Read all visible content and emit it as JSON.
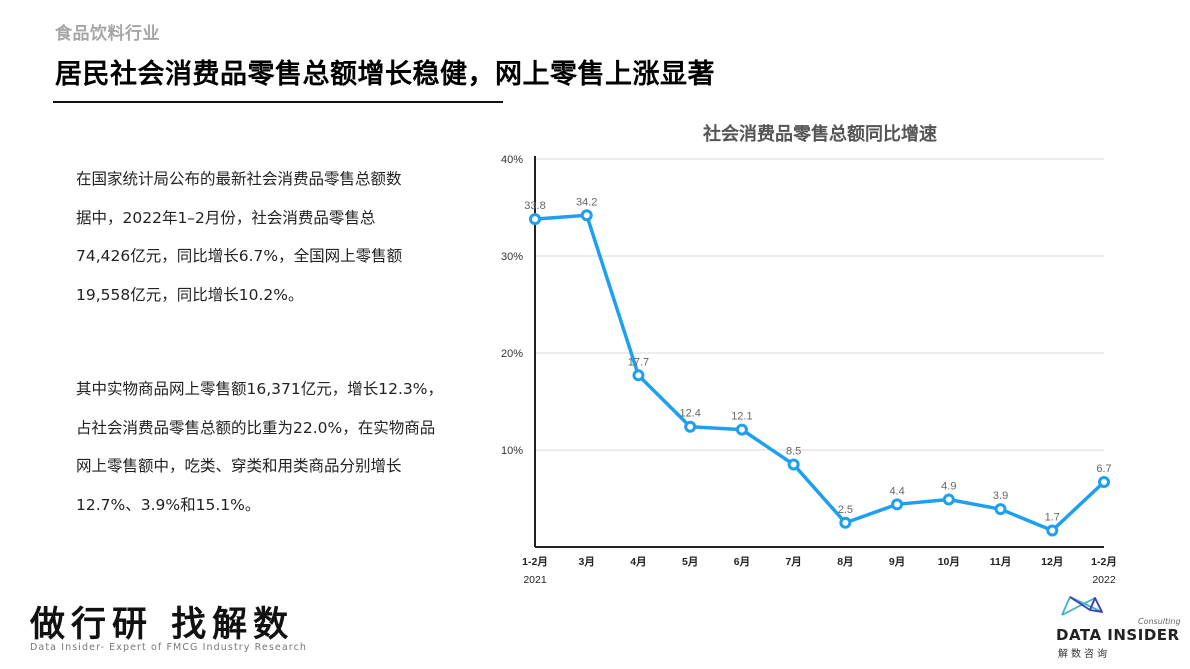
{
  "header": {
    "category": "食品饮料行业",
    "title": "居民社会消费品零售总额增长稳健，网上零售上涨显著"
  },
  "body": {
    "paragraphs": [
      [
        "在国家统计局公布的最新社会消费品零售总额数",
        "据中，2022年1–2月份，社会消费品零售总",
        "74,426亿元，同比增长6.7%，全国网上零售额",
        "19,558亿元，同比增长10.2%。"
      ],
      [
        "其中实物商品网上零售额16,371亿元，增长12.3%，",
        "占社会消费品零售总额的比重为22.0%，在实物商品",
        "网上零售额中，吃类、穿类和用类商品分别增长",
        "12.7%、3.9%和15.1%。"
      ]
    ]
  },
  "chart_data": {
    "type": "line",
    "title": "社会消费品零售总额同比增速",
    "xlabel": "",
    "ylabel": "",
    "ylim": [
      0,
      40
    ],
    "yticks": [
      "10%",
      "20%",
      "30%",
      "40%"
    ],
    "ytick_values": [
      10,
      20,
      30,
      40
    ],
    "categories": [
      "1-2月",
      "3月",
      "4月",
      "5月",
      "6月",
      "7月",
      "8月",
      "9月",
      "10月",
      "11月",
      "12月",
      "1-2月"
    ],
    "year_labels": [
      {
        "index": 0,
        "label": "2021"
      },
      {
        "index": 11,
        "label": "2022"
      }
    ],
    "series": [
      {
        "name": "社会消费品零售总额同比增速",
        "color": "#1ea0f0",
        "values": [
          33.8,
          34.2,
          17.7,
          12.4,
          12.1,
          8.5,
          2.5,
          4.4,
          4.9,
          3.9,
          1.7,
          6.7
        ]
      }
    ],
    "grid": true,
    "legend": "none"
  },
  "footer": {
    "slogan": "做行研 找解数",
    "tagline": "Data Insider- Expert of FMCG Industry Research",
    "logo_consulting": "Consulting",
    "logo_name": "DATA INSIDER",
    "logo_cn": "解数咨询"
  },
  "colors": {
    "line": "#1ea0f0",
    "grid": "#d9d9d9",
    "axis": "#222222",
    "category": "#a6a6a6"
  }
}
